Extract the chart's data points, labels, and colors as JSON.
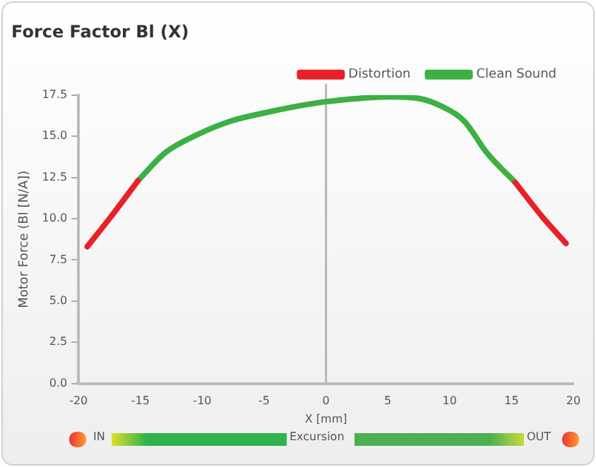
{
  "chart_data": {
    "type": "line",
    "title": "Force Factor Bl (X)",
    "xlabel": "X [mm]",
    "ylabel": "Motor Force (Bl [N/A])",
    "xlim": [
      -20,
      20
    ],
    "xticks": [
      -20,
      -15,
      -10,
      -5,
      0,
      5,
      10,
      15,
      20
    ],
    "ylim": [
      0,
      17.5
    ],
    "yticks": [
      {
        "value": 0,
        "label": "0.0"
      },
      {
        "value": 2.5,
        "label": "2.5"
      },
      {
        "value": 5,
        "label": "5.0"
      },
      {
        "value": 7.5,
        "label": "7.5"
      },
      {
        "value": 10,
        "label": "10.0"
      },
      {
        "value": 12.5,
        "label": "12.5"
      },
      {
        "value": 15,
        "label": "15.0"
      },
      {
        "value": 17.5,
        "label": "17.5"
      }
    ],
    "series": [
      {
        "name": "Distortion",
        "color": "#e8202a",
        "x": [
          -19.3,
          -17.4,
          -15.2,
          0,
          15.3,
          17.5,
          19.4
        ],
        "values": [
          8.3,
          10.1,
          12.3,
          null,
          12.2,
          10.1,
          8.5
        ]
      },
      {
        "name": "Clean Sound",
        "color": "#3cb043",
        "x": [
          -15.2,
          -13,
          -10.4,
          -7.8,
          -5.1,
          -2.5,
          0,
          2.7,
          5.1,
          7.5,
          9.4,
          11.2,
          13,
          15.3
        ],
        "values": [
          12.3,
          14,
          15.1,
          15.9,
          16.4,
          16.8,
          17.1,
          17.3,
          17.4,
          17.3,
          16.8,
          15.9,
          14,
          12.2
        ]
      }
    ],
    "ref_lines": [
      {
        "axis": "x",
        "value": 0,
        "color": "#b4b4b4"
      }
    ],
    "grid": false,
    "legend": "top right",
    "marker": "none",
    "line_style": "solid",
    "annotations": [
      "IN",
      "Excursion",
      "OUT"
    ]
  }
}
